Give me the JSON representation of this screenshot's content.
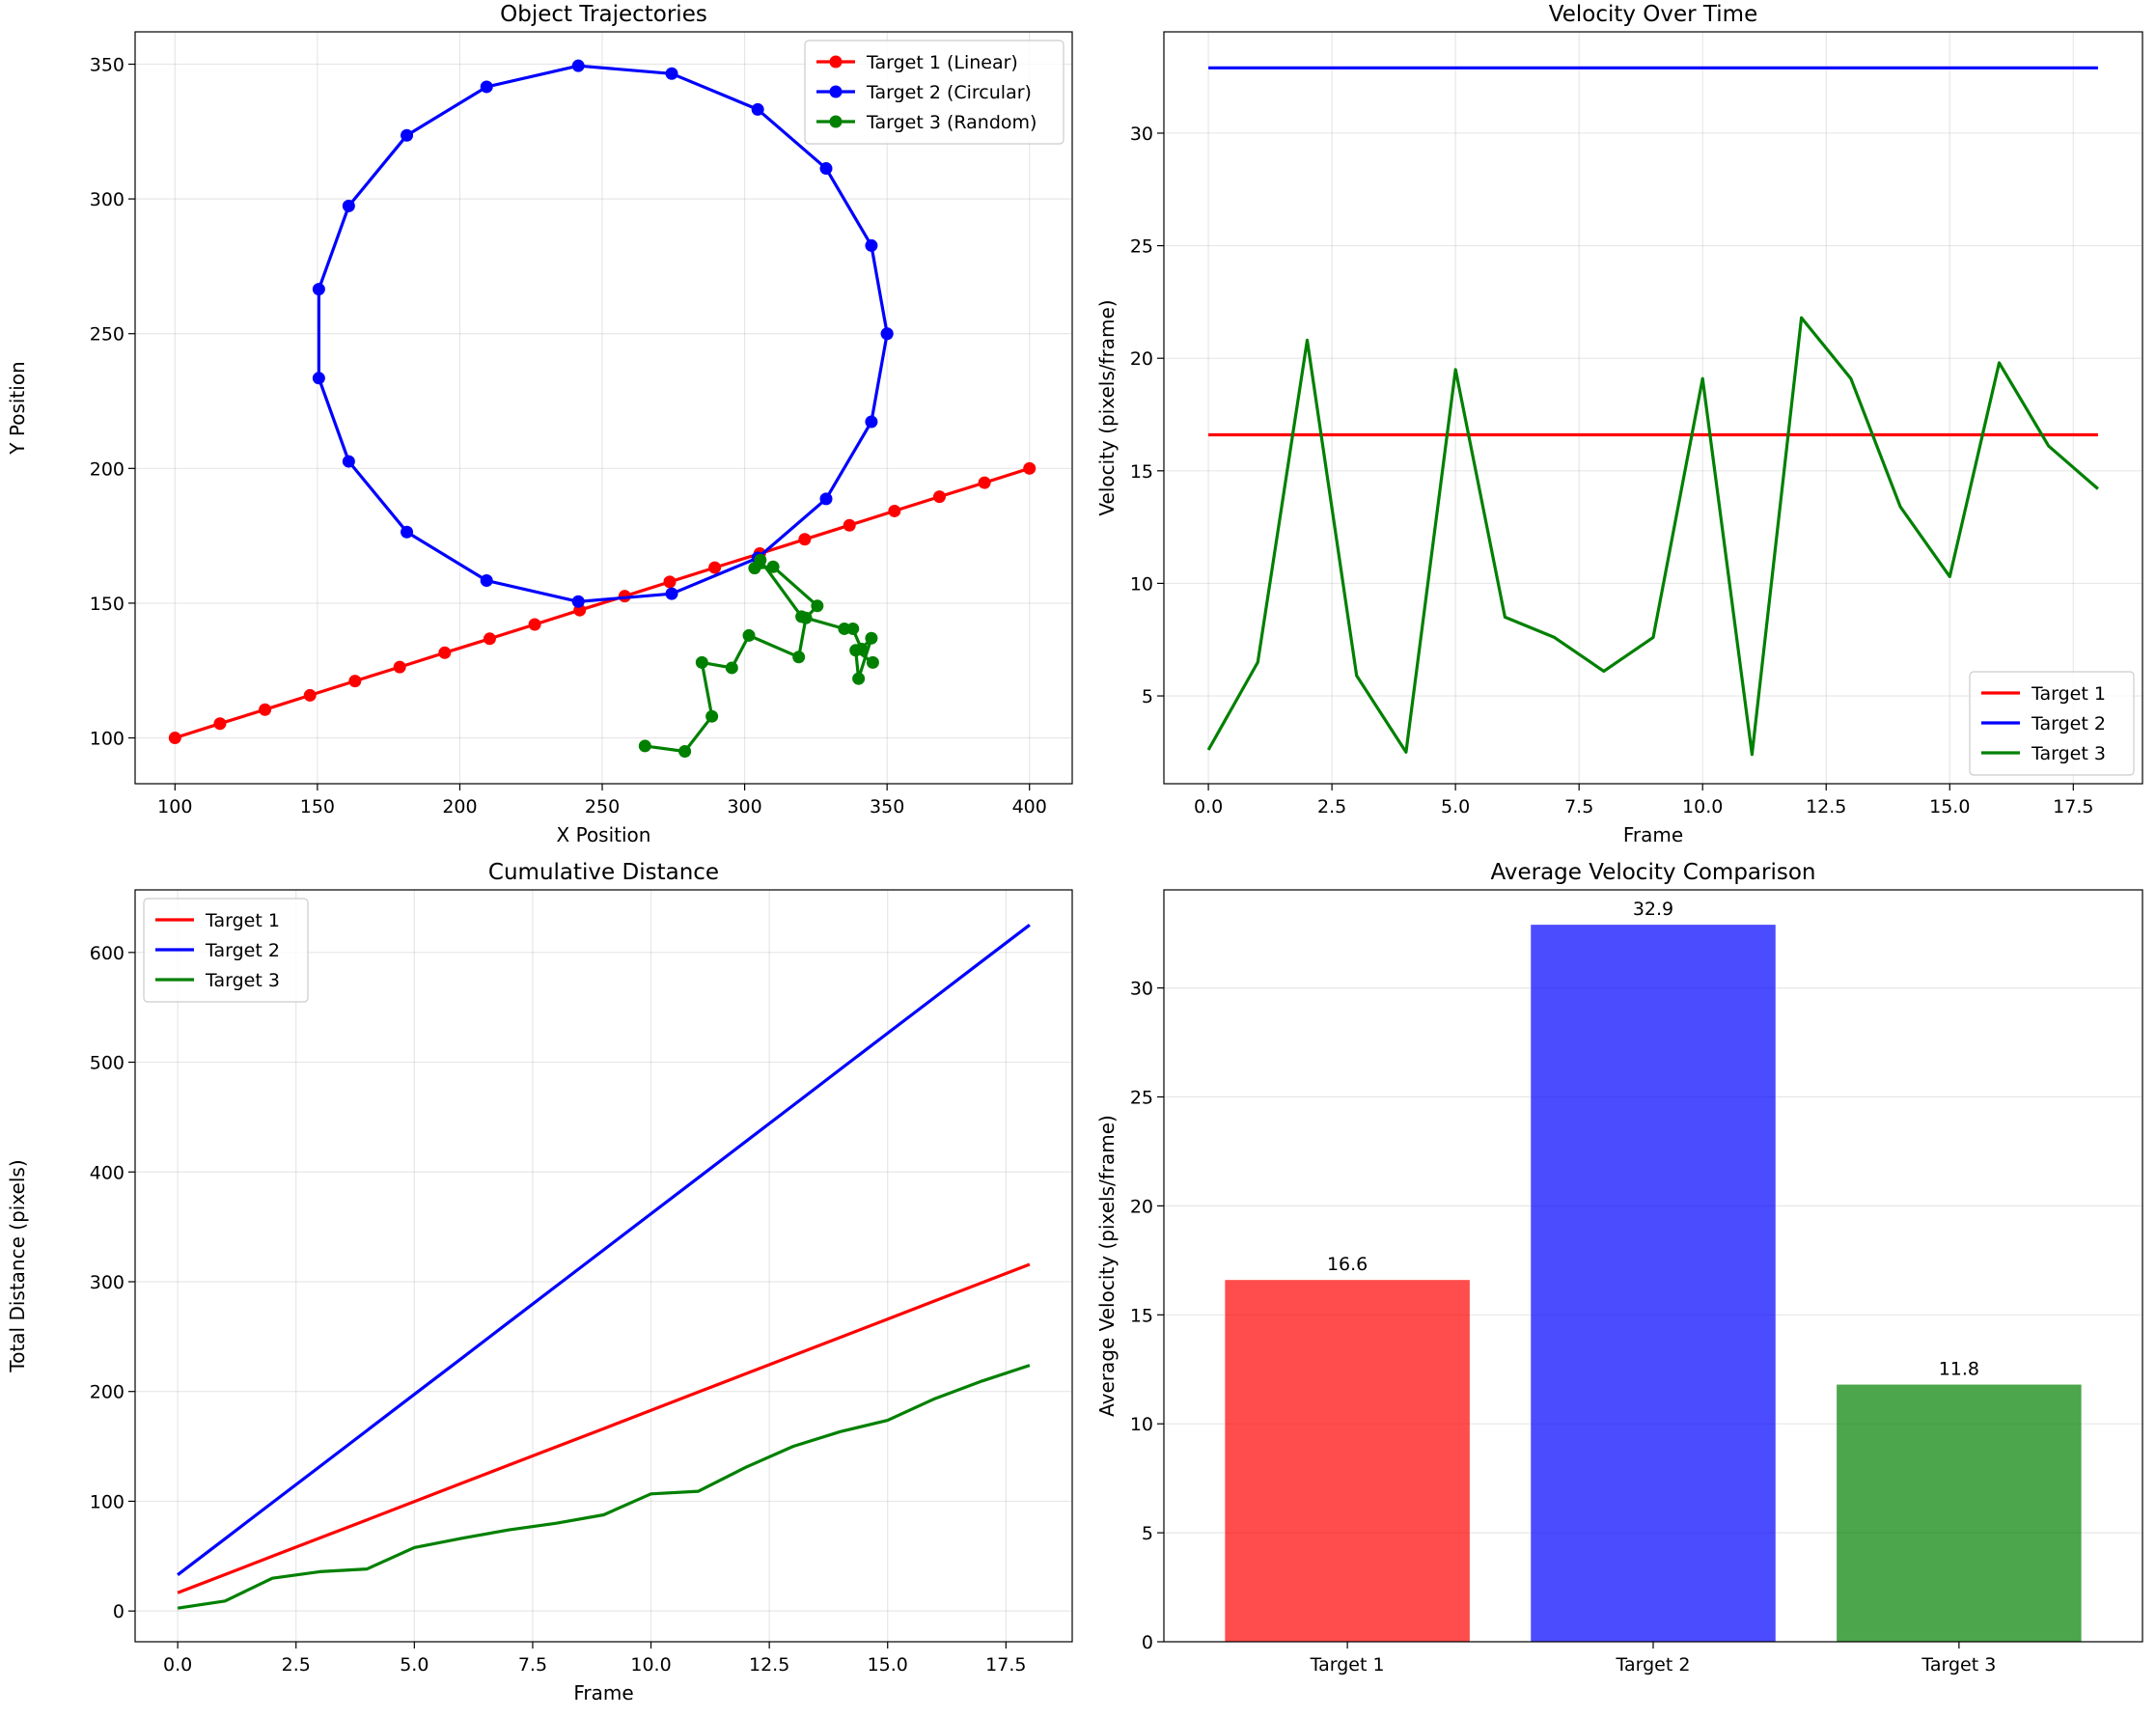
{
  "chart_data": [
    {
      "type": "line",
      "title": "Object Trajectories",
      "xlabel": "X Position",
      "ylabel": "Y Position",
      "xlim": [
        86,
        415
      ],
      "ylim": [
        83,
        362
      ],
      "xticks": [
        100,
        150,
        200,
        250,
        300,
        350,
        400
      ],
      "yticks": [
        100,
        150,
        200,
        250,
        300,
        350
      ],
      "grid": true,
      "legend": "top-right",
      "markers": true,
      "series": [
        {
          "name": "Target 1 (Linear)",
          "color": "#ff0000",
          "x": [
            100,
            115.8,
            131.6,
            147.4,
            163.2,
            178.9,
            194.7,
            210.5,
            226.3,
            242.1,
            257.9,
            273.7,
            289.5,
            305.3,
            321.1,
            336.8,
            352.6,
            368.4,
            384.2,
            400
          ],
          "y": [
            100,
            105.3,
            110.5,
            115.8,
            121.1,
            126.3,
            131.6,
            136.8,
            142.1,
            147.4,
            152.6,
            157.9,
            163.2,
            168.4,
            173.7,
            178.9,
            184.2,
            189.5,
            194.7,
            200
          ]
        },
        {
          "name": "Target 2 (Circular)",
          "color": "#0000ff",
          "x": [
            350,
            344.5,
            328.6,
            304.6,
            274.4,
            241.6,
            209.4,
            181.4,
            161.0,
            150.5,
            150.5,
            161.0,
            181.4,
            209.4,
            241.6,
            274.4,
            304.6,
            328.6,
            344.5,
            350
          ],
          "y": [
            250,
            282.7,
            311.3,
            333.2,
            346.5,
            349.4,
            341.6,
            323.6,
            297.4,
            266.5,
            233.5,
            202.6,
            176.4,
            158.4,
            150.6,
            153.5,
            166.8,
            188.7,
            217.3,
            250
          ]
        },
        {
          "name": "Target 3 (Random)",
          "color": "#008000",
          "x": [
            265,
            279,
            288.5,
            285,
            295.5,
            301.5,
            319,
            321.5,
            325.5,
            310,
            303.5,
            305.5,
            320,
            335,
            338,
            341,
            344.5,
            340,
            339,
            345
          ],
          "y": [
            97,
            95,
            108,
            128,
            126,
            138,
            130,
            144.5,
            149,
            163.5,
            163,
            166,
            145,
            140.5,
            140.5,
            133,
            137,
            122,
            132.5,
            128
          ]
        }
      ]
    },
    {
      "type": "line",
      "title": "Velocity Over Time",
      "xlabel": "Frame",
      "ylabel": "Velocity (pixels/frame)",
      "xlim": [
        -0.9,
        18.9
      ],
      "ylim": [
        1.1,
        34.5
      ],
      "xticks": [
        0.0,
        2.5,
        5.0,
        7.5,
        10.0,
        12.5,
        15.0,
        17.5
      ],
      "yticks": [
        5,
        10,
        15,
        20,
        25,
        30
      ],
      "grid": true,
      "legend": "bottom-right",
      "series": [
        {
          "name": "Target 1",
          "color": "#ff0000",
          "x": [
            0,
            1,
            2,
            3,
            4,
            5,
            6,
            7,
            8,
            9,
            10,
            11,
            12,
            13,
            14,
            15,
            16,
            17,
            18
          ],
          "values": [
            16.6,
            16.6,
            16.6,
            16.6,
            16.6,
            16.6,
            16.6,
            16.6,
            16.6,
            16.6,
            16.6,
            16.6,
            16.6,
            16.6,
            16.6,
            16.6,
            16.6,
            16.6,
            16.6
          ]
        },
        {
          "name": "Target 2",
          "color": "#0000ff",
          "x": [
            0,
            1,
            2,
            3,
            4,
            5,
            6,
            7,
            8,
            9,
            10,
            11,
            12,
            13,
            14,
            15,
            16,
            17,
            18
          ],
          "values": [
            32.9,
            32.9,
            32.9,
            32.9,
            32.9,
            32.9,
            32.9,
            32.9,
            32.9,
            32.9,
            32.9,
            32.9,
            32.9,
            32.9,
            32.9,
            32.9,
            32.9,
            32.9,
            32.9
          ]
        },
        {
          "name": "Target 3",
          "color": "#008000",
          "x": [
            0,
            1,
            2,
            3,
            4,
            5,
            6,
            7,
            8,
            9,
            10,
            11,
            12,
            13,
            14,
            15,
            16,
            17,
            18
          ],
          "values": [
            2.6,
            6.5,
            20.8,
            5.9,
            2.5,
            19.5,
            8.5,
            7.6,
            6.1,
            7.6,
            19.1,
            2.4,
            21.8,
            19.1,
            13.4,
            10.3,
            19.8,
            16.1,
            14.2
          ]
        }
      ]
    },
    {
      "type": "line",
      "title": "Cumulative Distance",
      "xlabel": "Frame",
      "ylabel": "Total Distance (pixels)",
      "xlim": [
        -0.9,
        18.9
      ],
      "ylim": [
        -28,
        657
      ],
      "xticks": [
        0.0,
        2.5,
        5.0,
        7.5,
        10.0,
        12.5,
        15.0,
        17.5
      ],
      "yticks": [
        0,
        100,
        200,
        300,
        400,
        500,
        600
      ],
      "grid": true,
      "legend": "top-left",
      "series": [
        {
          "name": "Target 1",
          "color": "#ff0000",
          "x": [
            0,
            1,
            2,
            3,
            4,
            5,
            6,
            7,
            8,
            9,
            10,
            11,
            12,
            13,
            14,
            15,
            16,
            17,
            18
          ],
          "values": [
            16.6,
            33.2,
            49.9,
            66.5,
            83.1,
            99.7,
            116.4,
            133.0,
            149.6,
            166.2,
            182.9,
            199.5,
            216.1,
            232.7,
            249.3,
            266.0,
            282.6,
            299.2,
            315.8
          ]
        },
        {
          "name": "Target 2",
          "color": "#0000ff",
          "x": [
            0,
            1,
            2,
            3,
            4,
            5,
            6,
            7,
            8,
            9,
            10,
            11,
            12,
            13,
            14,
            15,
            16,
            17,
            18
          ],
          "values": [
            32.9,
            65.8,
            98.7,
            131.6,
            164.5,
            197.4,
            230.3,
            263.2,
            296.1,
            329.0,
            361.9,
            394.8,
            427.7,
            460.6,
            493.5,
            526.4,
            559.3,
            592.2,
            625.1
          ]
        },
        {
          "name": "Target 3",
          "color": "#008000",
          "x": [
            0,
            1,
            2,
            3,
            4,
            5,
            6,
            7,
            8,
            9,
            10,
            11,
            12,
            13,
            14,
            15,
            16,
            17,
            18
          ],
          "values": [
            2.6,
            9.1,
            29.9,
            35.8,
            38.3,
            57.8,
            66.3,
            73.9,
            80.0,
            87.6,
            106.7,
            109.1,
            130.9,
            150.0,
            163.4,
            173.7,
            193.5,
            209.6,
            223.8
          ]
        }
      ]
    },
    {
      "type": "bar",
      "title": "Average Velocity Comparison",
      "xlabel": "",
      "ylabel": "Average Velocity (pixels/frame)",
      "ylim": [
        0,
        34.5
      ],
      "yticks": [
        0,
        5,
        10,
        15,
        20,
        25,
        30
      ],
      "categories": [
        "Target 1",
        "Target 2",
        "Target 3"
      ],
      "values": [
        16.6,
        32.9,
        11.8
      ],
      "data_labels": [
        "16.6",
        "32.9",
        "11.8"
      ],
      "colors": [
        "#ff0000",
        "#0000ff",
        "#008000"
      ],
      "bar_alpha": 0.7,
      "grid": true
    }
  ]
}
